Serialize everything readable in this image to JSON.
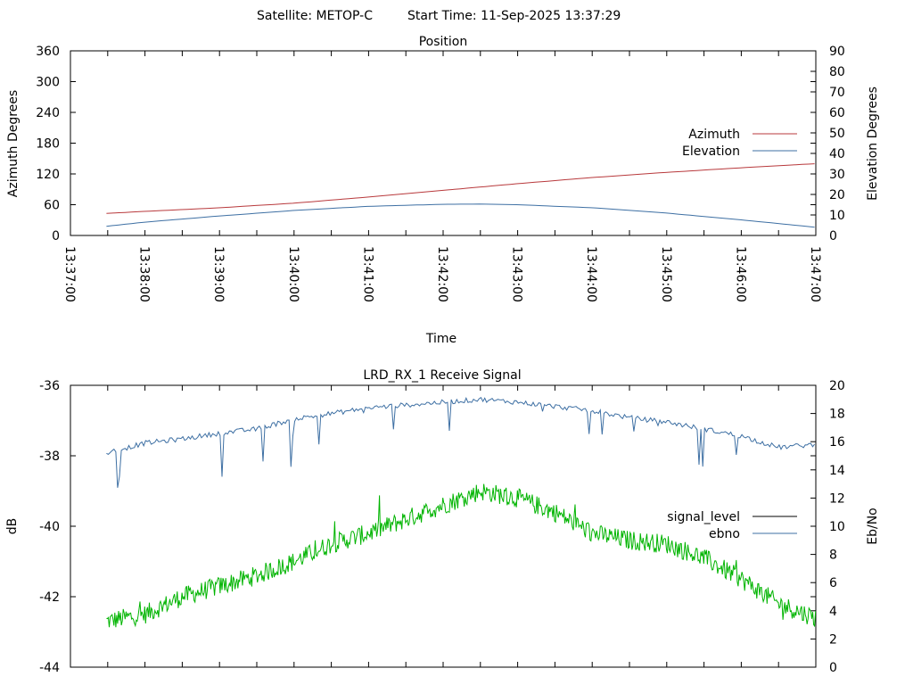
{
  "header": {
    "satellite_text": "Satellite: METOP-C",
    "start_time_text": "Start Time: 11-Sep-2025 13:37:29"
  },
  "colors": {
    "azimuth": "#b8393c",
    "elevation": "#3d6fa3",
    "signal_level": "#00b400",
    "ebno": "#3d6fa3",
    "legend_signal_level_swatch": "#000000"
  },
  "chart_data": [
    {
      "type": "line",
      "title": "Position",
      "xlabel": "Time",
      "ylabel": "Azimuth Degrees",
      "y2label": "Elevation Degrees",
      "ylim": [
        0,
        360
      ],
      "y2lim": [
        0,
        90
      ],
      "yticks": [
        "0",
        "60",
        "120",
        "180",
        "240",
        "300",
        "360"
      ],
      "y2ticks": [
        "0",
        "10",
        "20",
        "30",
        "40",
        "50",
        "60",
        "70",
        "80",
        "90"
      ],
      "xticks": [
        "13:37:00",
        "13:38:00",
        "13:39:00",
        "13:40:00",
        "13:41:00",
        "13:42:00",
        "13:43:00",
        "13:44:00",
        "13:45:00",
        "13:46:00",
        "13:47:00"
      ],
      "x_range": [
        "13:37:00",
        "13:47:00"
      ],
      "legend_position": "right",
      "grid": false,
      "series": [
        {
          "name": "Azimuth",
          "axis": "left",
          "x": [
            "13:37:29",
            "13:38:00",
            "13:39:00",
            "13:40:00",
            "13:41:00",
            "13:42:00",
            "13:43:00",
            "13:44:00",
            "13:45:00",
            "13:46:00",
            "13:47:00"
          ],
          "values": [
            43,
            47,
            54,
            63,
            75,
            88,
            101,
            113,
            123,
            132,
            140
          ]
        },
        {
          "name": "Elevation",
          "axis": "right",
          "x": [
            "13:37:29",
            "13:38:00",
            "13:39:00",
            "13:40:00",
            "13:41:00",
            "13:42:00",
            "13:42:30",
            "13:43:00",
            "13:44:00",
            "13:45:00",
            "13:46:00",
            "13:47:00"
          ],
          "values": [
            4.5,
            6.5,
            9.5,
            12.2,
            14.2,
            15.2,
            15.3,
            15.0,
            13.5,
            10.9,
            7.6,
            4.0
          ]
        }
      ]
    },
    {
      "type": "line",
      "title": "LRD_RX_1 Receive Signal",
      "xlabel": "",
      "ylabel": "dB",
      "y2label": "Eb/No",
      "ylim": [
        -44,
        -36
      ],
      "y2lim": [
        0,
        20
      ],
      "yticks": [
        "-44",
        "-42",
        "-40",
        "-38",
        "-36"
      ],
      "y2ticks": [
        "0",
        "2",
        "4",
        "6",
        "8",
        "10",
        "12",
        "14",
        "16",
        "18",
        "20"
      ],
      "x_range": [
        "13:37:00",
        "13:47:00"
      ],
      "legend_position": "right",
      "grid": false,
      "series": [
        {
          "name": "signal_level",
          "axis": "left",
          "x": [
            "13:37:29",
            "13:38:00",
            "13:38:30",
            "13:39:00",
            "13:39:30",
            "13:40:00",
            "13:40:30",
            "13:41:00",
            "13:41:30",
            "13:42:00",
            "13:42:30",
            "13:43:00",
            "13:43:30",
            "13:44:00",
            "13:44:30",
            "13:45:00",
            "13:45:30",
            "13:46:00",
            "13:46:30",
            "13:47:00"
          ],
          "values": [
            -42.7,
            -42.5,
            -42.0,
            -41.7,
            -41.4,
            -41.0,
            -40.5,
            -40.2,
            -39.8,
            -39.4,
            -39.0,
            -39.2,
            -39.6,
            -40.2,
            -40.4,
            -40.5,
            -40.9,
            -41.5,
            -42.2,
            -42.6
          ]
        },
        {
          "name": "ebno",
          "axis": "right",
          "x": [
            "13:37:29",
            "13:38:00",
            "13:38:30",
            "13:39:00",
            "13:39:30",
            "13:40:00",
            "13:40:30",
            "13:41:00",
            "13:41:30",
            "13:42:00",
            "13:42:30",
            "13:43:00",
            "13:43:30",
            "13:44:00",
            "13:44:30",
            "13:45:00",
            "13:45:30",
            "13:46:00",
            "13:46:30",
            "13:47:00"
          ],
          "values": [
            15.2,
            15.9,
            16.2,
            16.6,
            16.9,
            17.6,
            18.0,
            18.4,
            18.6,
            18.8,
            19.0,
            18.8,
            18.5,
            18.2,
            17.7,
            17.4,
            16.9,
            16.4,
            15.6,
            15.8
          ]
        }
      ]
    }
  ]
}
